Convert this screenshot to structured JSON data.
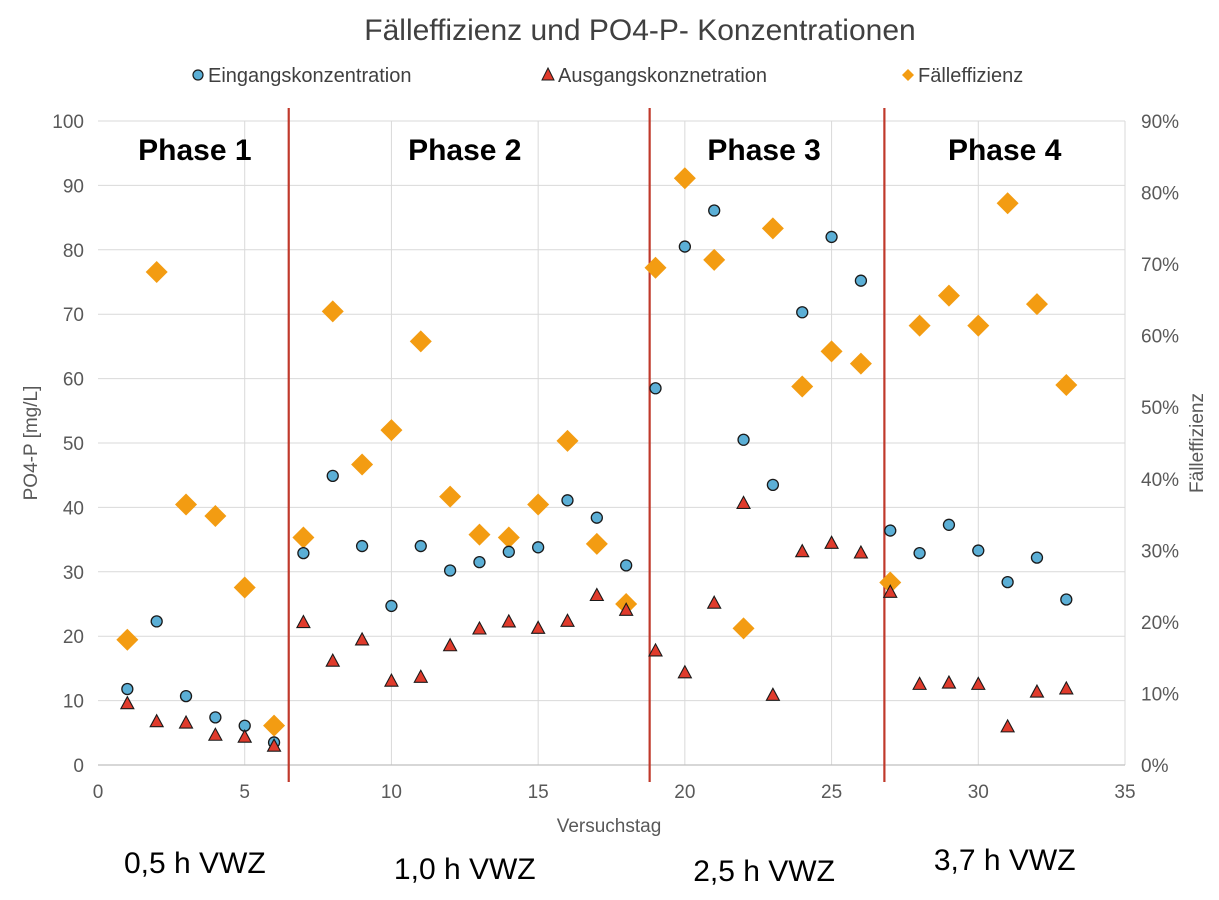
{
  "chart_data": {
    "type": "scatter",
    "title": "Fälleffizienz und PO4-P- Konzentrationen",
    "xlabel": "Versuchstag",
    "ylabel": "PO4-P [mg/L]",
    "y2label": "Fälleffizienz",
    "xlim": [
      0,
      35
    ],
    "ylim": [
      0,
      100
    ],
    "y2lim": [
      0,
      90
    ],
    "x_ticks": [
      "0",
      "5",
      "10",
      "15",
      "20",
      "25",
      "30",
      "35"
    ],
    "y_ticks": [
      "0",
      "10",
      "20",
      "30",
      "40",
      "50",
      "60",
      "70",
      "80",
      "90",
      "100"
    ],
    "y2_ticks": [
      "0%",
      "10%",
      "20%",
      "30%",
      "40%",
      "50%",
      "60%",
      "70%",
      "80%",
      "90%"
    ],
    "grid": true,
    "legend_position": "top",
    "series": [
      {
        "name": "Eingangskonzentration",
        "axis": "left",
        "marker": "circle",
        "color": "#5bafd6",
        "points": [
          [
            1,
            11.8
          ],
          [
            2,
            22.3
          ],
          [
            3,
            10.7
          ],
          [
            4,
            7.4
          ],
          [
            5,
            6.1
          ],
          [
            6,
            3.5
          ],
          [
            7,
            32.9
          ],
          [
            8,
            44.9
          ],
          [
            9,
            34
          ],
          [
            10,
            24.7
          ],
          [
            11,
            34
          ],
          [
            12,
            30.2
          ],
          [
            13,
            31.5
          ],
          [
            14,
            33.1
          ],
          [
            15,
            33.8
          ],
          [
            16,
            41.1
          ],
          [
            17,
            38.4
          ],
          [
            18,
            31
          ],
          [
            19,
            58.5
          ],
          [
            20,
            80.5
          ],
          [
            21,
            86.1
          ],
          [
            22,
            50.5
          ],
          [
            23,
            43.5
          ],
          [
            24,
            70.3
          ],
          [
            25,
            82
          ],
          [
            26,
            75.2
          ],
          [
            27,
            36.4
          ],
          [
            28,
            32.9
          ],
          [
            29,
            37.3
          ],
          [
            30,
            33.3
          ],
          [
            31,
            28.4
          ],
          [
            32,
            32.2
          ],
          [
            33,
            25.7
          ]
        ]
      },
      {
        "name": "Ausgangskonznetration",
        "axis": "left",
        "marker": "triangle",
        "color": "#e03b2c",
        "points": [
          [
            1,
            9.6
          ],
          [
            2,
            6.8
          ],
          [
            3,
            6.6
          ],
          [
            4,
            4.7
          ],
          [
            5,
            4.4
          ],
          [
            6,
            3
          ],
          [
            7,
            22.2
          ],
          [
            8,
            16.2
          ],
          [
            9,
            19.5
          ],
          [
            10,
            13.1
          ],
          [
            11,
            13.7
          ],
          [
            12,
            18.6
          ],
          [
            13,
            21.2
          ],
          [
            14,
            22.3
          ],
          [
            15,
            21.3
          ],
          [
            16,
            22.4
          ],
          [
            17,
            26.4
          ],
          [
            18,
            24.1
          ],
          [
            19,
            17.8
          ],
          [
            20,
            14.4
          ],
          [
            21,
            25.2
          ],
          [
            22,
            40.7
          ],
          [
            23,
            10.9
          ],
          [
            24,
            33.2
          ],
          [
            25,
            34.5
          ],
          [
            26,
            33
          ],
          [
            27,
            26.9
          ],
          [
            28,
            12.6
          ],
          [
            29,
            12.8
          ],
          [
            30,
            12.6
          ],
          [
            31,
            6
          ],
          [
            32,
            11.4
          ],
          [
            33,
            11.9
          ]
        ]
      },
      {
        "name": "Fälleffizienz",
        "axis": "right",
        "marker": "diamond",
        "color": "#f39c12",
        "points": [
          [
            1,
            17.5
          ],
          [
            2,
            68.9
          ],
          [
            3,
            36.4
          ],
          [
            4,
            34.8
          ],
          [
            5,
            24.8
          ],
          [
            6,
            5.5
          ],
          [
            7,
            31.8
          ],
          [
            8,
            63.4
          ],
          [
            9,
            42
          ],
          [
            10,
            46.8
          ],
          [
            11,
            59.2
          ],
          [
            12,
            37.5
          ],
          [
            13,
            32.2
          ],
          [
            14,
            31.8
          ],
          [
            15,
            36.4
          ],
          [
            16,
            45.3
          ],
          [
            17,
            30.9
          ],
          [
            18,
            22.5
          ],
          [
            19,
            69.5
          ],
          [
            20,
            82
          ],
          [
            21,
            70.6
          ],
          [
            22,
            19.1
          ],
          [
            23,
            75
          ],
          [
            24,
            52.9
          ],
          [
            25,
            57.8
          ],
          [
            26,
            56.1
          ],
          [
            27,
            25.5
          ],
          [
            28,
            61.4
          ],
          [
            29,
            65.6
          ],
          [
            30,
            61.4
          ],
          [
            31,
            78.5
          ],
          [
            32,
            64.4
          ],
          [
            33,
            53.1
          ]
        ]
      }
    ],
    "phase_dividers": [
      6.5,
      18.8,
      26.8
    ],
    "phases": [
      {
        "label": "Phase 1",
        "x": 3.3,
        "residence": "0,5 h VWZ"
      },
      {
        "label": "Phase 2",
        "x": 12.5,
        "residence": "1,0 h VWZ"
      },
      {
        "label": "Phase 3",
        "x": 22.7,
        "residence": "2,5 h VWZ"
      },
      {
        "label": "Phase 4",
        "x": 30.9,
        "residence": "3,7 h VWZ"
      }
    ]
  }
}
